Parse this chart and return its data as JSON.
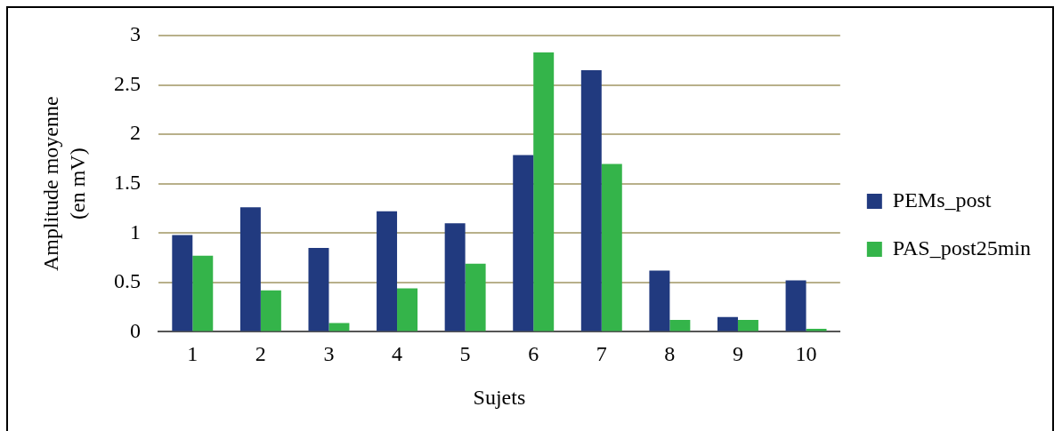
{
  "chart_data": {
    "type": "bar",
    "xlabel": "Sujets",
    "ylabel": "Amplitude moyenne\n(en mV)",
    "categories": [
      "1",
      "2",
      "3",
      "4",
      "5",
      "6",
      "7",
      "8",
      "9",
      "10"
    ],
    "series": [
      {
        "name": "PEMs_post",
        "color": "#213a7f",
        "values": [
          0.98,
          1.26,
          0.85,
          1.22,
          1.1,
          1.79,
          2.65,
          0.62,
          0.15,
          0.52
        ]
      },
      {
        "name": "PAS_post25min",
        "color": "#34b44a",
        "values": [
          0.77,
          0.42,
          0.09,
          0.44,
          0.69,
          2.83,
          1.7,
          0.12,
          0.12,
          0.03
        ]
      }
    ],
    "ylim": [
      0,
      3
    ],
    "yticks": [
      0,
      0.5,
      1,
      1.5,
      2,
      2.5,
      3
    ],
    "grid": "y",
    "legend": "right"
  }
}
